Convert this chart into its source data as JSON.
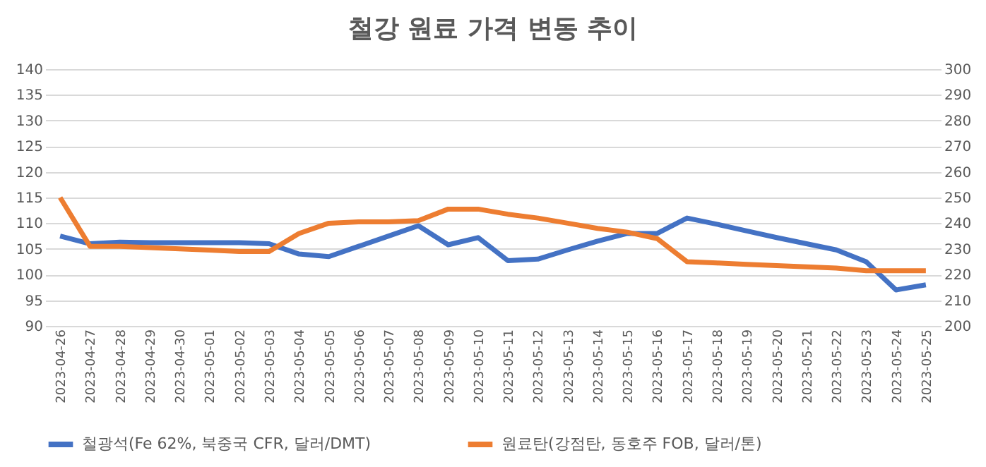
{
  "chart_data": {
    "type": "line",
    "title": "철강 원료 가격 변동 추이",
    "categories": [
      "2023-04-26",
      "2023-04-27",
      "2023-04-28",
      "2023-04-29",
      "2023-04-30",
      "2023-05-01",
      "2023-05-02",
      "2023-05-03",
      "2023-05-04",
      "2023-05-05",
      "2023-05-06",
      "2023-05-07",
      "2023-05-08",
      "2023-05-09",
      "2023-05-10",
      "2023-05-11",
      "2023-05-12",
      "2023-05-13",
      "2023-05-14",
      "2023-05-15",
      "2023-05-16",
      "2023-05-17",
      "2023-05-18",
      "2023-05-19",
      "2023-05-20",
      "2023-05-21",
      "2023-05-22",
      "2023-05-23",
      "2023-05-24",
      "2023-05-25"
    ],
    "series": [
      {
        "name": "철광석(Fe 62%, 북중국 CFR, 달러/DMT)",
        "color": "#4472c4",
        "values": [
          107.5,
          106,
          106.3,
          106.2,
          106.2,
          106.2,
          106.2,
          106,
          104,
          103.5,
          105.5,
          107.5,
          109.5,
          105.8,
          107.2,
          102.7,
          103,
          104.8,
          106.5,
          108,
          108,
          111,
          109.8,
          108.5,
          107.2,
          106,
          104.8,
          102.5,
          97,
          98
        ]
      },
      {
        "name": "원료탄(강점탄, 동호주 FOB, 달러/톤)",
        "color": "#ed7d31",
        "axis": "y2",
        "values": [
          250,
          231,
          231,
          230.5,
          230,
          229.5,
          229,
          229,
          236,
          240,
          240.5,
          240.5,
          241,
          245.5,
          245.5,
          243.5,
          242,
          240,
          238,
          236.5,
          234,
          225,
          224.5,
          224,
          223.5,
          223,
          222.5,
          221.5,
          221.5,
          221.5
        ]
      }
    ],
    "ylim": [
      90,
      140
    ],
    "yticks": [
      90,
      95,
      100,
      105,
      110,
      115,
      120,
      125,
      130,
      135,
      140
    ],
    "y2lim": [
      200,
      300
    ],
    "y2ticks": [
      200,
      210,
      220,
      230,
      240,
      250,
      260,
      270,
      280,
      290,
      300
    ],
    "grid": "y",
    "legend": "bottom",
    "marker": "none",
    "line_style": "solid"
  }
}
